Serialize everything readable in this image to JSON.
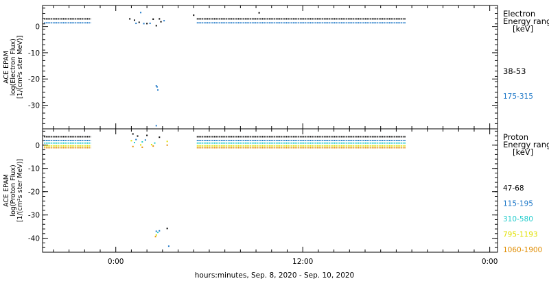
{
  "xlabel": "hours:minutes, Sep.  8, 2020 - Sep. 10, 2020",
  "x_ticks": [
    {
      "label": "0:00",
      "hour": 0
    },
    {
      "label": "12:00",
      "hour": 12
    },
    {
      "label": "0:00",
      "hour": 24
    }
  ],
  "chart_data": [
    {
      "type": "scatter",
      "panel": "electron",
      "ylabel_lines": [
        "ACE EPAM",
        "log(Electron Flux)",
        "[1/(cm²s ster MeV)]"
      ],
      "ylim": [
        -39,
        8
      ],
      "yticks": [
        0,
        -10,
        -20,
        -30
      ],
      "xlim_hours": [
        -4.7,
        24.5
      ],
      "legend_title_lines": [
        "Electron",
        "Energy range",
        "[keV]"
      ],
      "series": [
        {
          "name": "38-53",
          "color": "#000000",
          "segments": [
            {
              "x": [
                -4.6,
                -1.6
              ],
              "y": 2.9
            },
            {
              "x": [
                5.2,
                18.6
              ],
              "y": 2.9
            }
          ],
          "points": [
            [
              0.9,
              2.9
            ],
            [
              1.2,
              2.4
            ],
            [
              1.5,
              1.6
            ],
            [
              2.0,
              1.1
            ],
            [
              2.4,
              2.8
            ],
            [
              2.6,
              0.3
            ],
            [
              2.8,
              2.9
            ],
            [
              2.9,
              1.8
            ],
            [
              5.0,
              4.3
            ],
            [
              9.2,
              5.2
            ]
          ]
        },
        {
          "name": "175-315",
          "color": "#1e78c8",
          "segments": [
            {
              "x": [
                -4.6,
                -1.6
              ],
              "y": 1.4
            },
            {
              "x": [
                5.2,
                18.6
              ],
              "y": 1.4
            }
          ],
          "points": [
            [
              1.3,
              1.2
            ],
            [
              1.6,
              5.3
            ],
            [
              1.8,
              1.1
            ],
            [
              2.2,
              1.2
            ],
            [
              2.6,
              -22.6
            ],
            [
              2.65,
              -23.0
            ],
            [
              2.7,
              -24.2
            ],
            [
              2.6,
              -37.8
            ],
            [
              3.1,
              2.2
            ]
          ]
        }
      ]
    },
    {
      "type": "scatter",
      "panel": "proton",
      "ylabel_lines": [
        "ACE EPAM",
        "log(Proton Flux)",
        "[1/(cm²s ster MeV)]"
      ],
      "ylim": [
        -46,
        7
      ],
      "yticks": [
        0,
        -10,
        -20,
        -30,
        -40
      ],
      "xlim_hours": [
        -4.7,
        24.5
      ],
      "legend_title_lines": [
        "Proton",
        "Energy range",
        "[keV]"
      ],
      "series": [
        {
          "name": "47-68",
          "color": "#000000",
          "segments": [
            {
              "x": [
                -4.6,
                -1.6
              ],
              "y": 3.6
            },
            {
              "x": [
                5.2,
                18.6
              ],
              "y": 3.6
            }
          ],
          "points": [
            [
              1.1,
              4.8
            ],
            [
              1.4,
              3.9
            ],
            [
              2.0,
              4.2
            ],
            [
              2.8,
              3.4
            ],
            [
              3.3,
              -35.8
            ]
          ]
        },
        {
          "name": "115-195",
          "color": "#1e78c8",
          "segments": [
            {
              "x": [
                -4.6,
                -1.6
              ],
              "y": 2.0
            },
            {
              "x": [
                5.2,
                18.6
              ],
              "y": 2.0
            }
          ],
          "points": [
            [
              1.3,
              2.4
            ],
            [
              1.9,
              2.2
            ],
            [
              2.6,
              -37.0
            ],
            [
              2.8,
              -36.8
            ],
            [
              3.4,
              -43.4
            ]
          ]
        },
        {
          "name": "310-580",
          "color": "#22cccc",
          "segments": [
            {
              "x": [
                -4.6,
                -1.6
              ],
              "y": 0.9
            },
            {
              "x": [
                5.2,
                18.6
              ],
              "y": 0.9
            }
          ],
          "points": [
            [
              1.2,
              1.1
            ],
            [
              1.7,
              1.4
            ],
            [
              2.5,
              0.9
            ],
            [
              2.7,
              -37.5
            ]
          ]
        },
        {
          "name": "795-1193",
          "color": "#e0e000",
          "segments": [
            {
              "x": [
                -4.6,
                -1.6
              ],
              "y": -0.3
            },
            {
              "x": [
                5.2,
                18.6
              ],
              "y": -0.3
            }
          ],
          "points": [
            [
              1.0,
              1.9
            ],
            [
              1.6,
              0.1
            ],
            [
              2.3,
              0.2
            ],
            [
              3.3,
              1.6
            ],
            [
              2.6,
              -38.6
            ]
          ]
        },
        {
          "name": "1060-1900",
          "color": "#e08c00",
          "segments": [
            {
              "x": [
                -4.6,
                -1.6
              ],
              "y": -1.1
            },
            {
              "x": [
                5.2,
                18.6
              ],
              "y": -1.1
            }
          ],
          "points": [
            [
              1.1,
              -0.6
            ],
            [
              1.7,
              -0.9
            ],
            [
              2.4,
              -0.4
            ],
            [
              3.3,
              0.0
            ],
            [
              2.55,
              -39.3
            ]
          ]
        }
      ]
    }
  ]
}
